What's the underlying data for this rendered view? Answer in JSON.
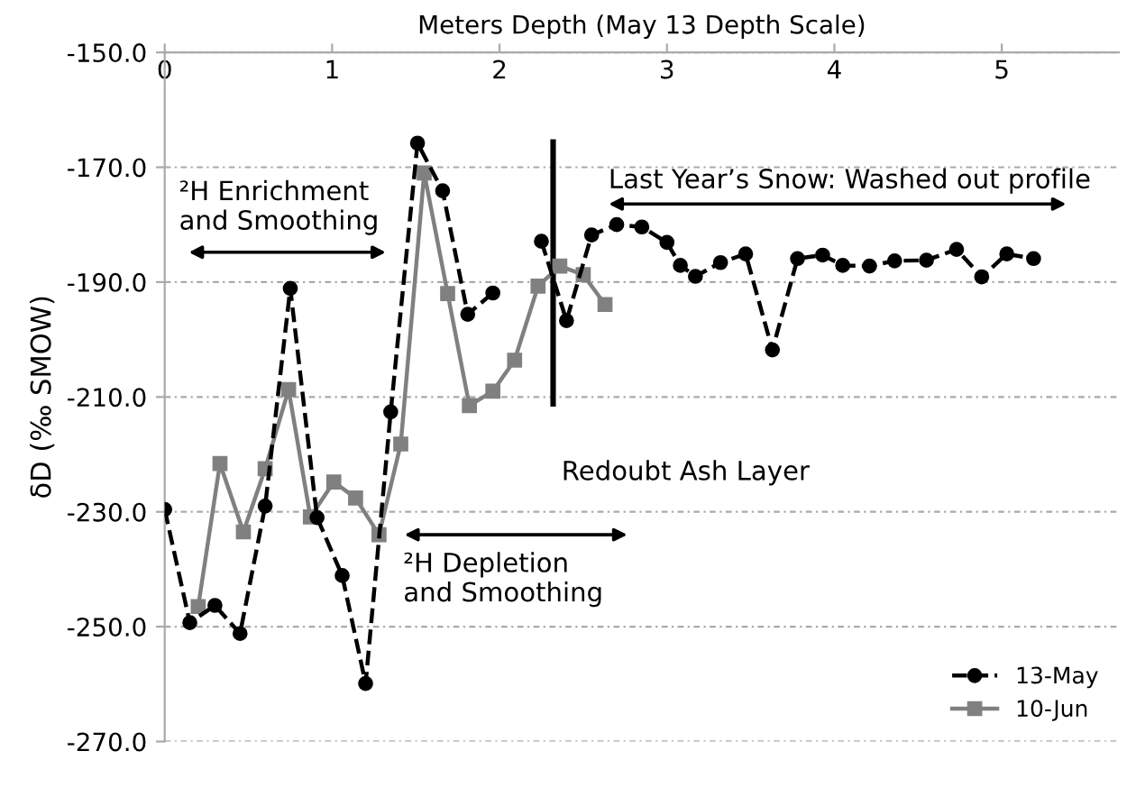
{
  "chart_data": {
    "type": "line",
    "xlabel": "Meters Depth (May 13 Depth Scale)",
    "ylabel": "δD (‰ SMOW)",
    "xlim": [
      0,
      5.7
    ],
    "xticks": [
      0,
      1,
      2,
      3,
      4,
      5
    ],
    "ylim": [
      -270,
      -150
    ],
    "yticks": [
      {
        "value": -150,
        "label": "-150.0"
      },
      {
        "value": -170,
        "label": "-170.0"
      },
      {
        "value": -190,
        "label": "-190.0"
      },
      {
        "value": -210,
        "label": "-210.0"
      },
      {
        "value": -230,
        "label": "-230.0"
      },
      {
        "value": -250,
        "label": "-250.0"
      },
      {
        "value": -270,
        "label": "-270.0"
      }
    ],
    "grid": "y",
    "legend": "bottom right",
    "series": [
      {
        "name": "13-May",
        "color": "#000000",
        "marker": "circle",
        "line_style": "dashed",
        "x": [
          0,
          0.15,
          0.3,
          0.45,
          0.6,
          0.75,
          0.91,
          1.06,
          1.2,
          1.35,
          1.51,
          1.66,
          1.81,
          1.96,
          2.1,
          2.25,
          2.4,
          2.55,
          2.7,
          2.85,
          3.0,
          3.08,
          3.17,
          3.32,
          3.47,
          3.63,
          3.78,
          3.93,
          4.05,
          4.21,
          4.36,
          4.55,
          4.73,
          4.88,
          5.03,
          5.19
        ],
        "values": [
          -229.6,
          -249.3,
          -246.3,
          -251.2,
          -229.0,
          -191.1,
          -231.0,
          -241.1,
          -259.9,
          -212.6,
          -165.8,
          -174.1,
          -195.6,
          -191.9,
          null,
          -182.9,
          -196.7,
          -181.8,
          -180.0,
          -180.4,
          -183.1,
          -187.1,
          -189.0,
          -186.6,
          -185.1,
          -201.8,
          -185.9,
          -185.3,
          -187.1,
          -187.2,
          -186.3,
          -186.2,
          -184.3,
          -189.1,
          -185.1,
          -185.9
        ]
      },
      {
        "name": "10-Jun",
        "color": "#808080",
        "marker": "square",
        "line_style": "solid",
        "x": [
          0.2,
          0.33,
          0.47,
          0.6,
          0.74,
          0.87,
          1.01,
          1.14,
          1.28,
          1.41,
          1.55,
          1.69,
          1.82,
          1.96,
          2.09,
          2.23,
          2.36,
          2.5,
          2.63
        ],
        "values": [
          -246.5,
          -221.6,
          -233.5,
          -222.5,
          -208.7,
          -230.9,
          -224.8,
          -227.6,
          -234.0,
          -218.2,
          -171.0,
          -192.0,
          -211.5,
          -209.0,
          -203.6,
          -190.7,
          -187.2,
          -188.7,
          -193.9
        ]
      }
    ],
    "ref_lines": [
      {
        "axis": "x",
        "value": 2.32,
        "label": "Redoubt Ash Layer",
        "color": "#000000"
      }
    ],
    "annotations": [
      "²H Enrichment\nand Smoothing",
      "²H Depletion\nand Smoothing",
      "Last Year’s Snow: Washed out profile"
    ]
  }
}
